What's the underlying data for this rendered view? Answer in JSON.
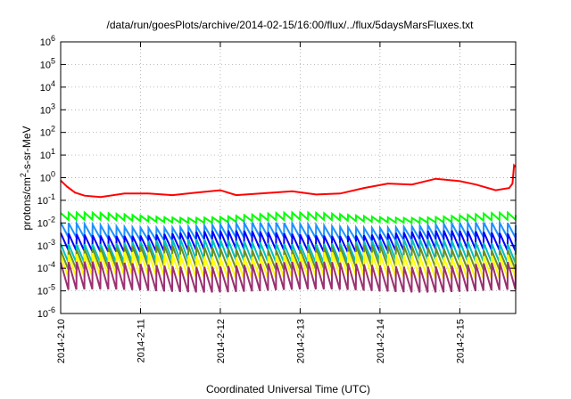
{
  "chart_data": {
    "type": "line",
    "title": "/data/run/goesPlots/archive/2014-02-15/16:00/flux/../flux/5daysMarsFluxes.txt",
    "xlabel": "Coordinated Universal Time (UTC)",
    "ylabel": "protons/cm2-s-sr-MeV",
    "ylabel_parts": [
      "protons/cm",
      "2",
      "-s-sr-MeV"
    ],
    "yscale": "log",
    "ylim": [
      -6,
      6
    ],
    "y_ticks": [
      {
        "exp": -6,
        "label": "10-6"
      },
      {
        "exp": -5,
        "label": "10-5"
      },
      {
        "exp": -4,
        "label": "10-4"
      },
      {
        "exp": -3,
        "label": "10-3"
      },
      {
        "exp": -2,
        "label": "10-2"
      },
      {
        "exp": -1,
        "label": "10-1"
      },
      {
        "exp": 0,
        "label": "100"
      },
      {
        "exp": 1,
        "label": "101"
      },
      {
        "exp": 2,
        "label": "102"
      },
      {
        "exp": 3,
        "label": "103"
      },
      {
        "exp": 4,
        "label": "104"
      },
      {
        "exp": 5,
        "label": "105"
      },
      {
        "exp": 6,
        "label": "106"
      }
    ],
    "xlim_days": [
      0,
      5.7
    ],
    "x_ticks": [
      {
        "day": 0,
        "label": "2014-2-10"
      },
      {
        "day": 1,
        "label": "2014-2-11"
      },
      {
        "day": 2,
        "label": "2014-2-12"
      },
      {
        "day": 3,
        "label": "2014-2-13"
      },
      {
        "day": 4,
        "label": "2014-2-14"
      },
      {
        "day": 5,
        "label": "2014-2-15"
      }
    ],
    "grid": true,
    "legend": "none",
    "series": [
      {
        "color": "#ff0000",
        "kind": "slow",
        "points": [
          [
            0,
            0.75
          ],
          [
            0.08,
            0.4
          ],
          [
            0.18,
            0.22
          ],
          [
            0.3,
            0.16
          ],
          [
            0.5,
            0.14
          ],
          [
            0.8,
            0.2
          ],
          [
            1.1,
            0.2
          ],
          [
            1.4,
            0.17
          ],
          [
            1.7,
            0.22
          ],
          [
            2.0,
            0.28
          ],
          [
            2.2,
            0.17
          ],
          [
            2.5,
            0.2
          ],
          [
            2.9,
            0.25
          ],
          [
            3.2,
            0.18
          ],
          [
            3.5,
            0.2
          ],
          [
            3.8,
            0.35
          ],
          [
            4.1,
            0.55
          ],
          [
            4.4,
            0.5
          ],
          [
            4.7,
            0.9
          ],
          [
            5.0,
            0.7
          ],
          [
            5.2,
            0.5
          ],
          [
            5.45,
            0.28
          ],
          [
            5.62,
            0.35
          ],
          [
            5.66,
            0.55
          ],
          [
            5.68,
            3.5
          ],
          [
            5.7,
            3.0
          ]
        ]
      },
      {
        "color": "#00ff00",
        "kind": "saw",
        "peak": 0.022,
        "trough": 0.012
      },
      {
        "color": "#1e90ff",
        "kind": "saw",
        "peak": 0.008,
        "trough": 0.002
      },
      {
        "color": "#0000ff",
        "kind": "saw",
        "peak": 0.0035,
        "trough": 0.0006
      },
      {
        "color": "#00c0c0",
        "kind": "saw",
        "peak": 0.0015,
        "trough": 0.0002
      },
      {
        "color": "#6b8e23",
        "kind": "saw",
        "peak": 0.0008,
        "trough": 0.0001
      },
      {
        "color": "#ffff00",
        "kind": "saw",
        "peak": 0.0004,
        "trough": 4e-05
      },
      {
        "color": "#9b3070",
        "kind": "saw",
        "peak": 0.00015,
        "trough": 1e-05
      }
    ],
    "sawtooth_period_days": 0.1
  }
}
